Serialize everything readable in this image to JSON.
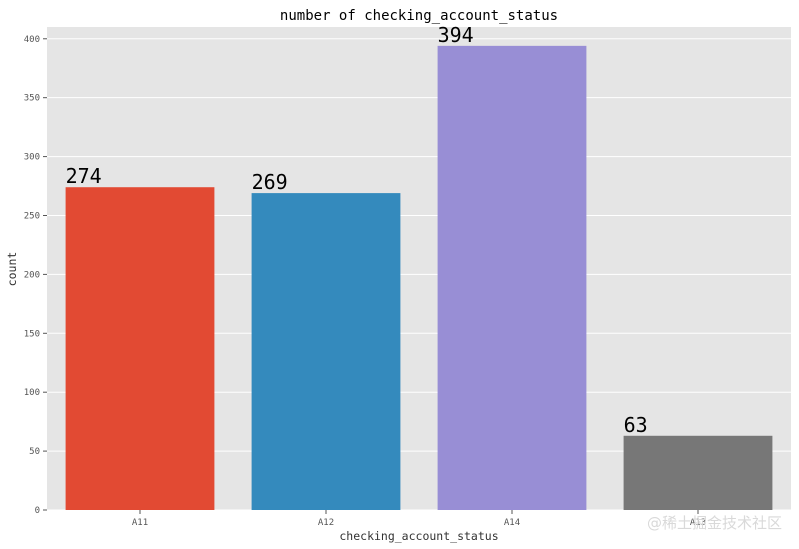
{
  "chart_data": {
    "type": "bar",
    "title": "number of checking_account_status",
    "xlabel": "checking_account_status",
    "ylabel": "count",
    "categories": [
      "A11",
      "A12",
      "A14",
      "A13"
    ],
    "values": [
      274,
      269,
      394,
      63
    ],
    "bar_labels": [
      "274",
      "269",
      "394",
      "63"
    ],
    "colors": [
      "#E24A33",
      "#348ABD",
      "#988ED5",
      "#777777"
    ],
    "ylim": [
      0,
      410
    ],
    "yticks": [
      0,
      50,
      100,
      150,
      200,
      250,
      300,
      350,
      400
    ],
    "grid": true,
    "plot_background": "#E5E5E5",
    "grid_color": "#FFFFFF"
  },
  "watermark": "@稀土掘金技术社区"
}
